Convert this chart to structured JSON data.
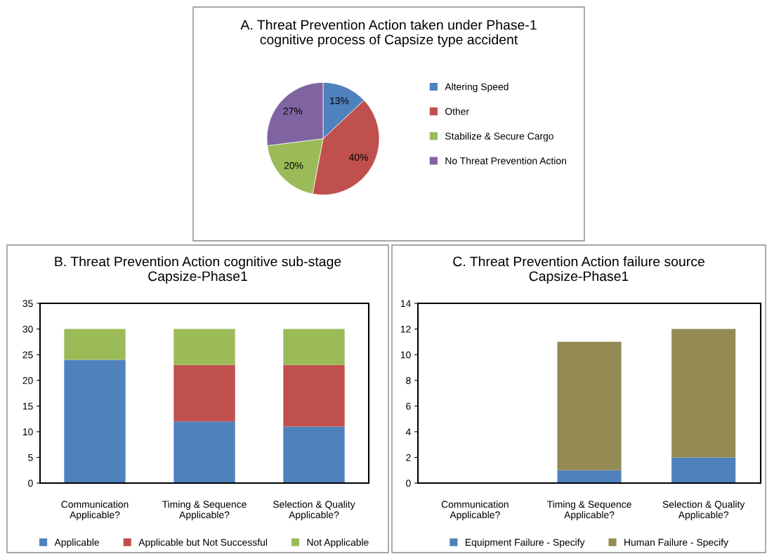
{
  "chart_data": [
    {
      "type": "pie",
      "title": "A. Threat Prevention Action taken under Phase-1\ncognitive process of Capsize type accident",
      "categories": [
        "Altering Speed",
        "Other",
        "Stabilize & Secure Cargo",
        "No Threat Prevention Action"
      ],
      "values": [
        13,
        40,
        20,
        27
      ],
      "colors": [
        "#4f81bd",
        "#c0504d",
        "#9bbb59",
        "#8064a2"
      ],
      "value_labels": [
        "13%",
        "40%",
        "20%",
        "27%"
      ],
      "legend": "right"
    },
    {
      "type": "bar",
      "stacked": true,
      "title": "B. Threat Prevention Action cognitive sub-stage\nCapsize-Phase1",
      "categories": [
        "Communication\nApplicable?",
        "Timing & Sequence\nApplicable?",
        "Selection & Quality\nApplicable?"
      ],
      "series": [
        {
          "name": "Applicable",
          "color": "#4f81bd",
          "values": [
            24,
            12,
            11
          ]
        },
        {
          "name": "Applicable but Not Successful",
          "color": "#c0504d",
          "values": [
            0,
            11,
            12
          ]
        },
        {
          "name": "Not Applicable",
          "color": "#9bbb59",
          "values": [
            6,
            7,
            7
          ]
        }
      ],
      "ylim": [
        0,
        35
      ],
      "yticks": [
        0,
        5,
        10,
        15,
        20,
        25,
        30,
        35
      ],
      "legend": "bottom"
    },
    {
      "type": "bar",
      "stacked": true,
      "title": "C. Threat Prevention Action failure source\nCapsize-Phase1",
      "categories": [
        "Communication\nApplicable?",
        "Timing & Sequence\nApplicable?",
        "Selection & Quality\nApplicable?"
      ],
      "series": [
        {
          "name": "Equipment Failure - Specify",
          "color": "#4f81bd",
          "values": [
            0,
            1,
            2
          ]
        },
        {
          "name": "Human Failure - Specify",
          "color": "#948a54",
          "values": [
            0,
            10,
            10
          ]
        }
      ],
      "ylim": [
        0,
        14
      ],
      "yticks": [
        0,
        2,
        4,
        6,
        8,
        10,
        12,
        14
      ],
      "legend": "bottom"
    }
  ]
}
